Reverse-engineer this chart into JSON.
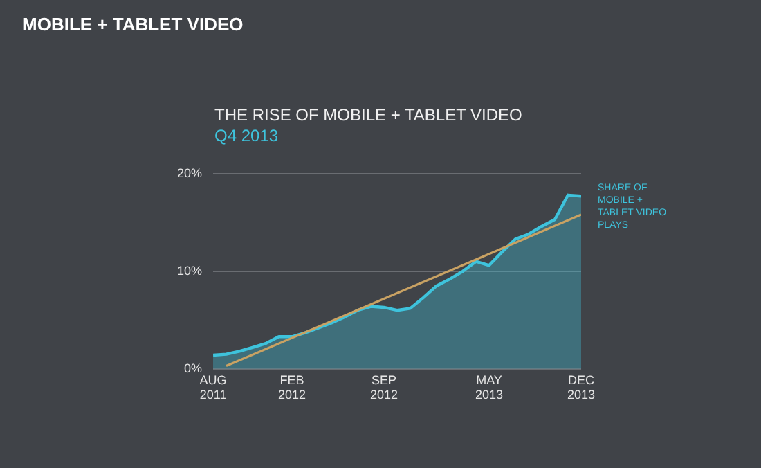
{
  "chart_data": {
    "type": "area",
    "title": "THE RISE OF MOBILE + TABLET VIDEO",
    "subtitle": "Q4 2013",
    "annotations": [
      "MOBILE + TABLET VIDEO"
    ],
    "x": [
      "2011-08",
      "2011-09",
      "2011-10",
      "2011-11",
      "2011-12",
      "2012-01",
      "2012-02",
      "2012-03",
      "2012-04",
      "2012-05",
      "2012-06",
      "2012-07",
      "2012-08",
      "2012-09",
      "2012-10",
      "2012-11",
      "2012-12",
      "2013-01",
      "2013-02",
      "2013-03",
      "2013-04",
      "2013-05",
      "2013-06",
      "2013-07",
      "2013-08",
      "2013-09",
      "2013-10",
      "2013-11",
      "2013-12"
    ],
    "series": [
      {
        "name": "SHARE OF MOBILE + TABLET VIDEO PLAYS",
        "color": "#3ec3dc",
        "values": [
          1.4,
          1.5,
          1.8,
          2.2,
          2.6,
          3.3,
          3.3,
          3.7,
          4.2,
          4.7,
          5.3,
          6.0,
          6.4,
          6.3,
          6.0,
          6.2,
          7.3,
          8.5,
          9.2,
          10.0,
          11.0,
          10.6,
          12.0,
          13.3,
          13.8,
          14.6,
          15.3,
          17.8,
          17.7
        ]
      },
      {
        "type": "line",
        "color": "#c9a263",
        "x": [
          "2011-09",
          "2013-12"
        ],
        "values": [
          0.3,
          15.8
        ]
      }
    ],
    "xlim": [
      "2011-08",
      "2013-12"
    ],
    "xticks": [
      {
        "value": "2011-08",
        "label": "AUG 2011"
      },
      {
        "value": "2012-02",
        "label": "FEB 2012"
      },
      {
        "value": "2012-09",
        "label": "SEP 2012"
      },
      {
        "value": "2013-05",
        "label": "MAY 2013"
      },
      {
        "value": "2013-12",
        "label": "DEC 2013"
      }
    ],
    "ylim": [
      0,
      20
    ],
    "yticks": [
      {
        "value": 0,
        "label": "0%"
      },
      {
        "value": 10,
        "label": "10%"
      },
      {
        "value": 20,
        "label": "20%"
      }
    ],
    "grid": "y",
    "legend": false,
    "marker": "none",
    "line_style": "solid"
  }
}
